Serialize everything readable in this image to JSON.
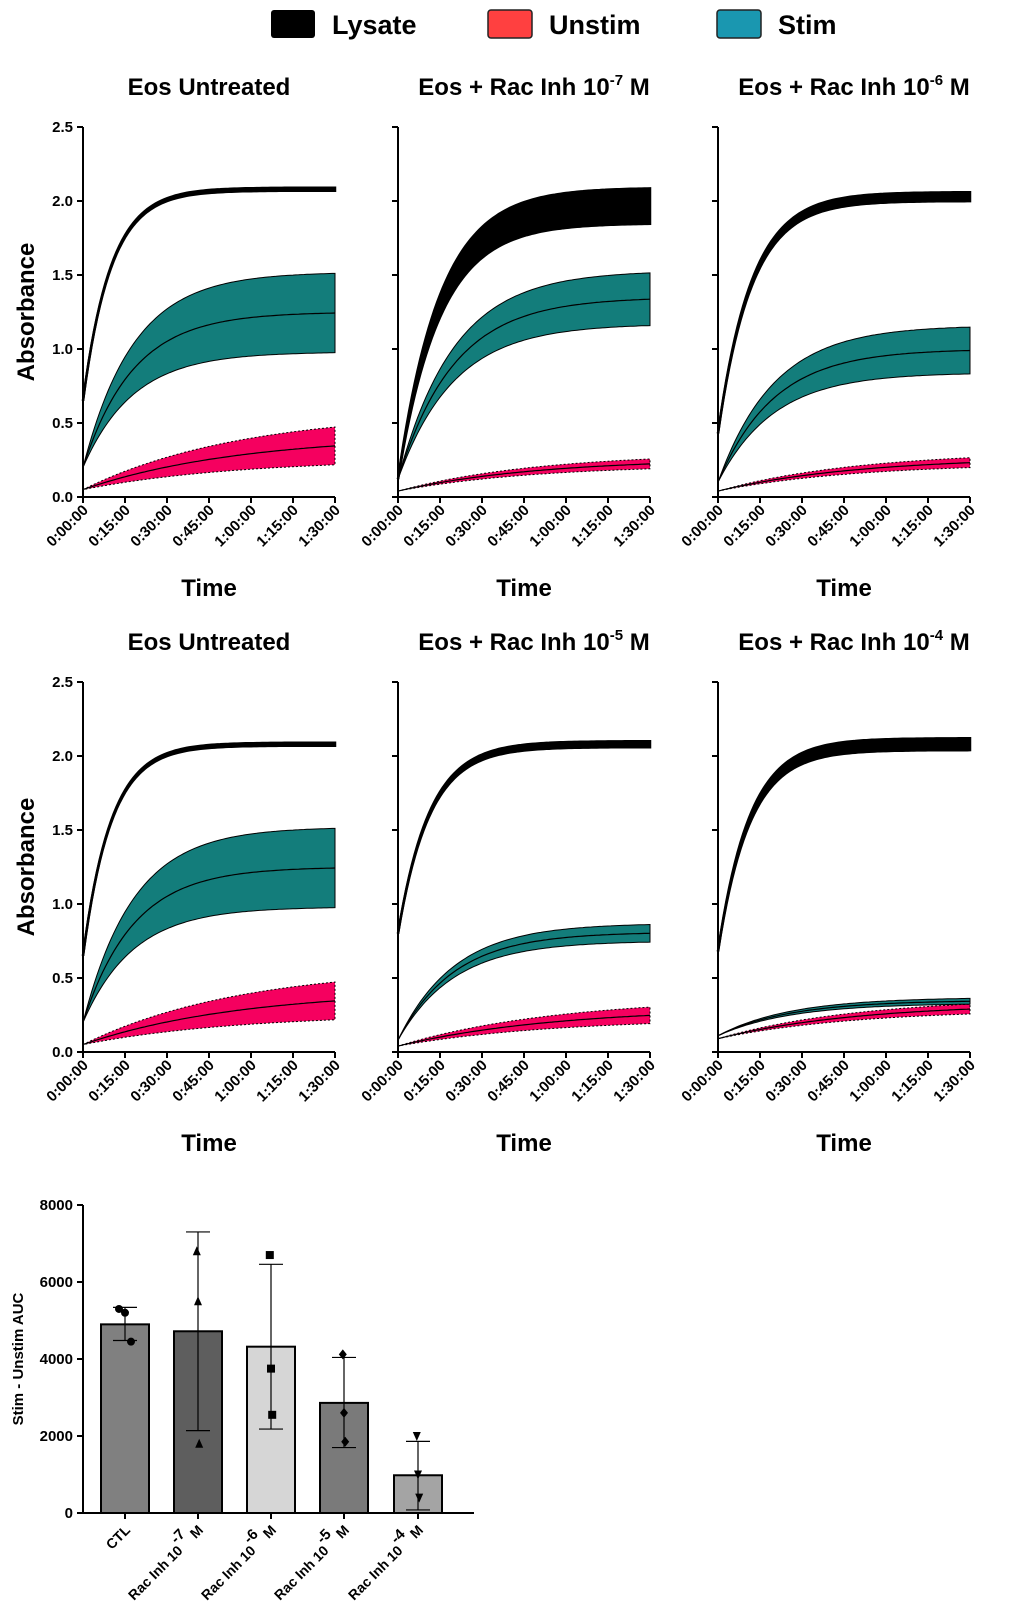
{
  "legend": [
    {
      "label": "Lysate",
      "color": "#000000"
    },
    {
      "label": "Unstim",
      "color": "#ff4040"
    },
    {
      "label": "Stim",
      "color": "#1a97b0"
    }
  ],
  "colors": {
    "stim_band": "#137d7b",
    "unstim_band": "#f5005f",
    "lysate": "#000000"
  },
  "chart_data": [
    {
      "type": "area",
      "title": {
        "base": "Eos Untreated",
        "exp": "",
        "unit": ""
      },
      "xlabel": "Time",
      "ylabel": "Absorbance",
      "x": [
        "0:00:00",
        "0:15:00",
        "0:30:00",
        "0:45:00",
        "1:00:00",
        "1:15:00",
        "1:30:00"
      ],
      "yticks": [
        "0.0",
        "0.5",
        "1.0",
        "1.5",
        "2.0",
        "2.5"
      ],
      "ylim": [
        0,
        2.5
      ],
      "series": [
        {
          "name": "Lysate",
          "start": 0.65,
          "mean": 2.08,
          "sd_end": 0.01,
          "k": 9
        },
        {
          "name": "Stim",
          "start": 0.2,
          "mean": 1.25,
          "sd_end": 0.27,
          "k": 5
        },
        {
          "name": "Unstim",
          "start": 0.05,
          "mean": 0.42,
          "sd_end": 0.16,
          "k": 1.6
        }
      ]
    },
    {
      "type": "area",
      "title": {
        "base": "Eos + Rac Inh 10",
        "exp": "-7",
        "unit": " M"
      },
      "xlabel": "Time",
      "ylabel": "",
      "x": [
        "0:00:00",
        "0:15:00",
        "0:30:00",
        "0:45:00",
        "1:00:00",
        "1:15:00",
        "1:30:00"
      ],
      "yticks": [],
      "ylim": [
        0,
        2.5
      ],
      "series": [
        {
          "name": "Lysate",
          "start": 0.12,
          "mean": 1.97,
          "sd_end": 0.12,
          "k": 6
        },
        {
          "name": "Stim",
          "start": 0.12,
          "mean": 1.35,
          "sd_end": 0.18,
          "k": 4.5
        },
        {
          "name": "Unstim",
          "start": 0.04,
          "mean": 0.26,
          "sd_end": 0.04,
          "k": 1.8
        }
      ]
    },
    {
      "type": "area",
      "title": {
        "base": "Eos + Rac Inh 10",
        "exp": "-6",
        "unit": " M"
      },
      "xlabel": "Time",
      "ylabel": "",
      "x": [
        "0:00:00",
        "0:15:00",
        "0:30:00",
        "0:45:00",
        "1:00:00",
        "1:15:00",
        "1:30:00"
      ],
      "yticks": [],
      "ylim": [
        0,
        2.5
      ],
      "series": [
        {
          "name": "Lysate",
          "start": 0.43,
          "mean": 2.03,
          "sd_end": 0.03,
          "k": 7.5
        },
        {
          "name": "Stim",
          "start": 0.1,
          "mean": 1.0,
          "sd_end": 0.16,
          "k": 4.5
        },
        {
          "name": "Unstim",
          "start": 0.04,
          "mean": 0.27,
          "sd_end": 0.04,
          "k": 1.8
        }
      ]
    },
    {
      "type": "area",
      "title": {
        "base": "Eos Untreated",
        "exp": "",
        "unit": ""
      },
      "xlabel": "Time",
      "ylabel": "Absorbance",
      "x": [
        "0:00:00",
        "0:15:00",
        "0:30:00",
        "0:45:00",
        "1:00:00",
        "1:15:00",
        "1:30:00"
      ],
      "yticks": [
        "0.0",
        "0.5",
        "1.0",
        "1.5",
        "2.0",
        "2.5"
      ],
      "ylim": [
        0,
        2.5
      ],
      "series": [
        {
          "name": "Lysate",
          "start": 0.65,
          "mean": 2.08,
          "sd_end": 0.01,
          "k": 9
        },
        {
          "name": "Stim",
          "start": 0.2,
          "mean": 1.25,
          "sd_end": 0.27,
          "k": 5
        },
        {
          "name": "Unstim",
          "start": 0.05,
          "mean": 0.42,
          "sd_end": 0.16,
          "k": 1.6
        }
      ]
    },
    {
      "type": "area",
      "title": {
        "base": "Eos + Rac Inh 10",
        "exp": "-5",
        "unit": " M"
      },
      "xlabel": "Time",
      "ylabel": "",
      "x": [
        "0:00:00",
        "0:15:00",
        "0:30:00",
        "0:45:00",
        "1:00:00",
        "1:15:00",
        "1:30:00"
      ],
      "yticks": [],
      "ylim": [
        0,
        2.5
      ],
      "series": [
        {
          "name": "Lysate",
          "start": 0.8,
          "mean": 2.08,
          "sd_end": 0.02,
          "k": 8
        },
        {
          "name": "Stim",
          "start": 0.08,
          "mean": 0.81,
          "sd_end": 0.06,
          "k": 4.5
        },
        {
          "name": "Unstim",
          "start": 0.04,
          "mean": 0.3,
          "sd_end": 0.07,
          "k": 1.6
        }
      ]
    },
    {
      "type": "area",
      "title": {
        "base": "Eos + Rac Inh 10",
        "exp": "-4",
        "unit": " M"
      },
      "xlabel": "Time",
      "ylabel": "",
      "x": [
        "0:00:00",
        "0:15:00",
        "0:30:00",
        "0:45:00",
        "1:00:00",
        "1:15:00",
        "1:30:00"
      ],
      "yticks": [],
      "ylim": [
        0,
        2.5
      ],
      "series": [
        {
          "name": "Lysate",
          "start": 0.68,
          "mean": 2.08,
          "sd_end": 0.04,
          "k": 8
        },
        {
          "name": "Stim",
          "start": 0.11,
          "mean": 0.35,
          "sd_end": 0.02,
          "k": 3.5
        },
        {
          "name": "Unstim",
          "start": 0.09,
          "mean": 0.33,
          "sd_end": 0.04,
          "k": 1.8
        }
      ]
    },
    {
      "type": "bar",
      "ylabel": "Stim - Unstim AUC",
      "yticks": [
        "0",
        "2000",
        "4000",
        "6000",
        "8000"
      ],
      "ylim": [
        0,
        8000
      ],
      "categories": [
        {
          "base": "CTL",
          "exp": "",
          "unit": ""
        },
        {
          "base": "Rac Inh 10",
          "exp": "-7",
          "unit": " M"
        },
        {
          "base": "Rac Inh 10",
          "exp": "-6",
          "unit": " M"
        },
        {
          "base": "Rac Inh 10",
          "exp": "-5",
          "unit": " M"
        },
        {
          "base": "Rac Inh 10",
          "exp": "-4",
          "unit": " M"
        }
      ],
      "values": [
        4900,
        4720,
        4320,
        2860,
        980
      ],
      "err_low": [
        4480,
        2140,
        2180,
        1700,
        80
      ],
      "err_high": [
        5340,
        7300,
        6460,
        4040,
        1860
      ],
      "points": [
        [
          5300,
          5200,
          4450
        ],
        [
          6800,
          5500,
          1800
        ],
        [
          6700,
          3750,
          2550
        ],
        [
          4120,
          2600,
          1850
        ],
        [
          2000,
          1000,
          400
        ]
      ],
      "markers": [
        "circle",
        "triangle",
        "square",
        "diamond",
        "triangle-down"
      ],
      "fills": [
        "#808080",
        "#5e5e5e",
        "#d6d6d6",
        "#7a7a7a",
        "#a4a4a4"
      ]
    }
  ]
}
